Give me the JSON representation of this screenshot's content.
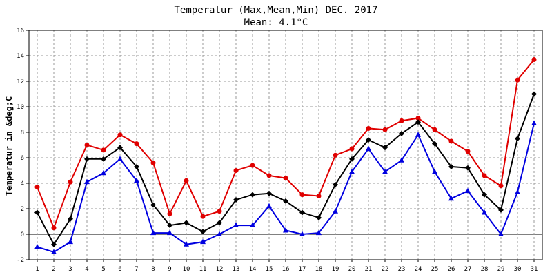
{
  "chart_data": {
    "type": "line",
    "title": "Temperatur (Max,Mean,Min) DEC. 2017",
    "subtitle": "Mean: 4.1°C",
    "ylabel": "Temperatur in &deg;C",
    "xlabel": "",
    "ylim": [
      -2,
      16
    ],
    "yticks": [
      "-2",
      "0",
      "2",
      "4",
      "6",
      "8",
      "10",
      "12",
      "14",
      "16"
    ],
    "x": [
      "1",
      "2",
      "3",
      "4",
      "5",
      "6",
      "7",
      "8",
      "9",
      "10",
      "11",
      "12",
      "13",
      "14",
      "15",
      "16",
      "17",
      "18",
      "19",
      "20",
      "21",
      "22",
      "23",
      "24",
      "25",
      "26",
      "27",
      "28",
      "29",
      "30",
      "31"
    ],
    "grid": true,
    "legend": "none",
    "series": [
      {
        "color": "#e00000",
        "marker": "circle",
        "values": [
          3.7,
          0.5,
          4.1,
          7.0,
          6.6,
          7.8,
          7.1,
          5.6,
          1.6,
          4.2,
          1.4,
          1.8,
          5.0,
          5.4,
          4.6,
          4.4,
          3.1,
          3.0,
          6.2,
          6.7,
          8.3,
          8.2,
          8.9,
          9.1,
          8.2,
          7.3,
          6.5,
          4.6,
          3.8,
          12.1,
          13.7
        ]
      },
      {
        "color": "#000000",
        "marker": "diamond",
        "values": [
          1.7,
          -0.8,
          1.2,
          5.9,
          5.9,
          6.8,
          5.3,
          2.3,
          0.7,
          0.9,
          0.2,
          0.9,
          2.7,
          3.1,
          3.2,
          2.6,
          1.7,
          1.3,
          3.9,
          5.9,
          7.4,
          6.8,
          7.9,
          8.8,
          7.1,
          5.3,
          5.2,
          3.1,
          1.9,
          7.5,
          11.0
        ]
      },
      {
        "color": "#0000e0",
        "marker": "triangle",
        "values": [
          -1.0,
          -1.4,
          -0.6,
          4.1,
          4.8,
          5.9,
          4.2,
          0.1,
          0.1,
          -0.8,
          -0.6,
          0.0,
          0.7,
          0.7,
          2.2,
          0.3,
          0.0,
          0.1,
          1.8,
          4.9,
          6.7,
          4.9,
          5.8,
          7.8,
          4.9,
          2.8,
          3.4,
          1.7,
          0.0,
          3.3,
          8.7
        ]
      }
    ]
  }
}
